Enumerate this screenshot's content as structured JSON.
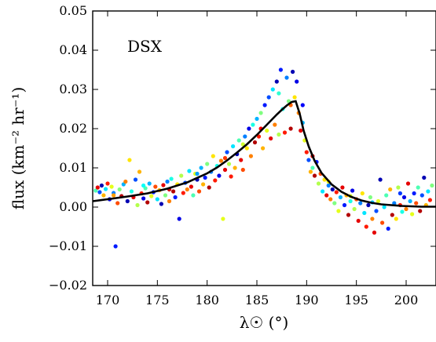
{
  "chart_data": {
    "type": "scatter",
    "annotation": "DSX",
    "xlabel": "λ☉ (°)",
    "ylabel": "flux (km⁻² hr⁻¹)",
    "xlim": [
      168.5,
      203
    ],
    "ylim": [
      -0.02,
      0.05
    ],
    "x_ticks": [
      170,
      175,
      180,
      185,
      190,
      195,
      200
    ],
    "x_tick_labels": [
      "170",
      "175",
      "180",
      "185",
      "190",
      "195",
      "200"
    ],
    "y_ticks": [
      -0.02,
      -0.01,
      0.0,
      0.01,
      0.02,
      0.03,
      0.04,
      0.05
    ],
    "y_tick_labels": [
      "−0.02",
      "−0.01",
      "0.00",
      "0.01",
      "0.02",
      "0.03",
      "0.04",
      "0.05"
    ],
    "grid": false,
    "series": [
      {
        "marker": "dot",
        "colormap": "jet",
        "points": [
          [
            168.8,
            0.0042,
            0.45
          ],
          [
            169.0,
            0.005,
            0.9
          ],
          [
            169.2,
            0.0038,
            0.2
          ],
          [
            169.4,
            0.0055,
            0.05
          ],
          [
            169.6,
            0.003,
            0.7
          ],
          [
            169.8,
            0.0046,
            0.35
          ],
          [
            170.0,
            0.006,
            0.85
          ],
          [
            170.2,
            0.002,
            0.1
          ],
          [
            170.4,
            0.0052,
            0.6
          ],
          [
            170.6,
            0.0036,
            0.25
          ],
          [
            170.8,
            -0.01,
            0.15
          ],
          [
            171.0,
            0.001,
            0.8
          ],
          [
            171.2,
            0.0045,
            0.5
          ],
          [
            171.4,
            0.0028,
            0.95
          ],
          [
            171.6,
            0.0058,
            0.3
          ],
          [
            171.8,
            0.0065,
            0.75
          ],
          [
            172.0,
            0.0015,
            0.05
          ],
          [
            172.2,
            0.012,
            0.65
          ],
          [
            172.4,
            0.004,
            0.4
          ],
          [
            172.6,
            0.0025,
            0.9
          ],
          [
            172.8,
            0.007,
            0.2
          ],
          [
            173.0,
            0.0005,
            0.55
          ],
          [
            173.2,
            0.009,
            0.7
          ],
          [
            173.4,
            0.0035,
            0.85
          ],
          [
            173.6,
            0.0022,
            0.1
          ],
          [
            173.8,
            0.0048,
            0.45
          ],
          [
            174.0,
            0.0012,
            0.95
          ],
          [
            174.2,
            0.006,
            0.3
          ],
          [
            174.4,
            0.0028,
            0.6
          ],
          [
            174.6,
            0.0038,
            0.15
          ],
          [
            174.8,
            0.0052,
            0.8
          ],
          [
            175.0,
            0.002,
            0.35
          ],
          [
            175.2,
            0.0043,
            0.7
          ],
          [
            175.4,
            0.0008,
            0.05
          ],
          [
            175.6,
            0.0056,
            0.9
          ],
          [
            175.8,
            0.003,
            0.5
          ],
          [
            176.0,
            0.0065,
            0.25
          ],
          [
            176.2,
            0.0015,
            0.75
          ],
          [
            176.4,
            0.0072,
            0.4
          ],
          [
            176.6,
            0.004,
            0.95
          ],
          [
            176.8,
            0.0025,
            0.15
          ],
          [
            177.0,
            0.0058,
            0.65
          ],
          [
            177.2,
            -0.003,
            0.1
          ],
          [
            177.4,
            0.008,
            0.55
          ],
          [
            177.6,
            0.0036,
            0.85
          ],
          [
            177.8,
            0.0062,
            0.2
          ],
          [
            178.0,
            0.0045,
            0.75
          ],
          [
            178.2,
            0.0092,
            0.35
          ],
          [
            178.4,
            0.0052,
            0.9
          ],
          [
            178.6,
            0.003,
            0.45
          ],
          [
            178.8,
            0.0085,
            0.6
          ],
          [
            179.0,
            0.007,
            0.05
          ],
          [
            179.2,
            0.004,
            0.8
          ],
          [
            179.4,
            0.01,
            0.3
          ],
          [
            179.6,
            0.0058,
            0.7
          ],
          [
            179.8,
            0.0075,
            0.15
          ],
          [
            180.0,
            0.011,
            0.5
          ],
          [
            180.2,
            0.005,
            0.95
          ],
          [
            180.4,
            0.009,
            0.25
          ],
          [
            180.6,
            0.013,
            0.65
          ],
          [
            180.8,
            0.0068,
            0.85
          ],
          [
            181.0,
            0.0105,
            0.4
          ],
          [
            181.2,
            0.008,
            0.1
          ],
          [
            181.4,
            0.0118,
            0.75
          ],
          [
            181.6,
            -0.003,
            0.6
          ],
          [
            181.8,
            0.0095,
            0.9
          ],
          [
            182.0,
            0.014,
            0.2
          ],
          [
            182.2,
            0.011,
            0.55
          ],
          [
            182.4,
            0.0078,
            0.85
          ],
          [
            182.6,
            0.0155,
            0.35
          ],
          [
            182.8,
            0.01,
            0.7
          ],
          [
            183.0,
            0.0135,
            0.05
          ],
          [
            183.2,
            0.017,
            0.45
          ],
          [
            183.4,
            0.012,
            0.9
          ],
          [
            183.6,
            0.0095,
            0.8
          ],
          [
            183.8,
            0.018,
            0.25
          ],
          [
            184.0,
            0.015,
            0.65
          ],
          [
            184.2,
            0.02,
            0.1
          ],
          [
            184.4,
            0.013,
            0.75
          ],
          [
            184.6,
            0.021,
            0.4
          ],
          [
            184.8,
            0.0165,
            0.95
          ],
          [
            185.0,
            0.0225,
            0.3
          ],
          [
            185.2,
            0.018,
            0.85
          ],
          [
            185.4,
            0.024,
            0.5
          ],
          [
            185.6,
            0.015,
            0.7
          ],
          [
            185.8,
            0.026,
            0.15
          ],
          [
            186.0,
            0.0195,
            0.6
          ],
          [
            186.2,
            0.028,
            0.2
          ],
          [
            186.4,
            0.0175,
            0.9
          ],
          [
            186.6,
            0.03,
            0.35
          ],
          [
            186.8,
            0.021,
            0.75
          ],
          [
            187.0,
            0.032,
            0.05
          ],
          [
            187.2,
            0.0185,
            0.55
          ],
          [
            187.4,
            0.035,
            0.15
          ],
          [
            187.6,
            0.025,
            0.4
          ],
          [
            187.8,
            0.019,
            0.85
          ],
          [
            188.0,
            0.033,
            0.25
          ],
          [
            188.2,
            0.027,
            0.5
          ],
          [
            188.4,
            0.02,
            0.95
          ],
          [
            188.6,
            0.0345,
            0.05
          ],
          [
            188.8,
            0.028,
            0.65
          ],
          [
            189.0,
            0.032,
            0.1
          ],
          [
            189.2,
            0.024,
            0.75
          ],
          [
            189.4,
            0.0195,
            0.9
          ],
          [
            189.6,
            0.0215,
            0.3
          ],
          [
            189.8,
            0.017,
            0.6
          ],
          [
            190.0,
            0.014,
            0.85
          ],
          [
            190.2,
            0.012,
            0.2
          ],
          [
            190.4,
            0.009,
            0.7
          ],
          [
            190.6,
            0.01,
            0.45
          ],
          [
            190.8,
            0.008,
            0.95
          ],
          [
            191.0,
            0.0115,
            0.15
          ],
          [
            191.2,
            0.006,
            0.55
          ],
          [
            191.4,
            0.0085,
            0.8
          ],
          [
            191.6,
            0.004,
            0.35
          ],
          [
            191.8,
            0.007,
            0.65
          ],
          [
            192.0,
            0.003,
            0.9
          ],
          [
            192.2,
            0.0055,
            0.25
          ],
          [
            192.4,
            0.002,
            0.75
          ],
          [
            192.6,
            0.0045,
            0.05
          ],
          [
            192.8,
            0.001,
            0.5
          ],
          [
            193.0,
            0.0038,
            0.85
          ],
          [
            193.2,
            -0.001,
            0.6
          ],
          [
            193.4,
            0.0025,
            0.3
          ],
          [
            193.6,
            0.005,
            0.9
          ],
          [
            193.8,
            0.0005,
            0.15
          ],
          [
            194.0,
            0.003,
            0.7
          ],
          [
            194.2,
            -0.002,
            0.95
          ],
          [
            194.4,
            0.0015,
            0.4
          ],
          [
            194.6,
            0.0042,
            0.1
          ],
          [
            194.8,
            -0.0005,
            0.55
          ],
          [
            195.0,
            0.002,
            0.8
          ],
          [
            195.2,
            -0.0035,
            0.9
          ],
          [
            195.4,
            0.001,
            0.25
          ],
          [
            195.6,
            0.0035,
            0.65
          ],
          [
            195.8,
            -0.0015,
            0.35
          ],
          [
            196.0,
            -0.005,
            0.85
          ],
          [
            196.2,
            0.0005,
            0.05
          ],
          [
            196.4,
            0.0025,
            0.5
          ],
          [
            196.6,
            -0.003,
            0.75
          ],
          [
            196.8,
            -0.0065,
            0.9
          ],
          [
            197.0,
            -0.001,
            0.2
          ],
          [
            197.2,
            0.0015,
            0.6
          ],
          [
            197.4,
            0.007,
            0.05
          ],
          [
            197.6,
            -0.004,
            0.8
          ],
          [
            197.8,
            0.0,
            0.35
          ],
          [
            198.0,
            0.003,
            0.45
          ],
          [
            198.2,
            -0.0055,
            0.15
          ],
          [
            198.4,
            0.0045,
            0.7
          ],
          [
            198.6,
            -0.002,
            0.95
          ],
          [
            198.8,
            0.001,
            0.25
          ],
          [
            199.0,
            -0.003,
            0.65
          ],
          [
            199.2,
            0.005,
            0.55
          ],
          [
            199.4,
            0.0005,
            0.85
          ],
          [
            199.6,
            -0.0012,
            0.4
          ],
          [
            199.8,
            0.0025,
            0.1
          ],
          [
            200.0,
            -0.0005,
            0.75
          ],
          [
            200.2,
            0.006,
            0.9
          ],
          [
            200.4,
            0.0015,
            0.3
          ],
          [
            200.6,
            -0.0018,
            0.6
          ],
          [
            200.8,
            0.0035,
            0.15
          ],
          [
            201.0,
            0.001,
            0.8
          ],
          [
            201.2,
            0.005,
            0.45
          ],
          [
            201.4,
            -0.001,
            0.95
          ],
          [
            201.6,
            0.003,
            0.2
          ],
          [
            201.8,
            0.0075,
            0.05
          ],
          [
            202.0,
            0.0005,
            0.7
          ],
          [
            202.2,
            0.004,
            0.35
          ],
          [
            202.4,
            0.0018,
            0.85
          ],
          [
            202.6,
            0.0055,
            0.5
          ],
          [
            170.6,
            0.003,
            0.72
          ],
          [
            173.6,
            0.0055,
            0.38
          ],
          [
            176.2,
            0.0045,
            0.92
          ],
          [
            179.0,
            0.0085,
            0.28
          ],
          [
            181.8,
            0.0125,
            0.82
          ],
          [
            183.6,
            0.016,
            0.58
          ],
          [
            185.4,
            0.02,
            0.88
          ],
          [
            187.2,
            0.029,
            0.42
          ],
          [
            188.4,
            0.026,
            0.78
          ],
          [
            189.6,
            0.026,
            0.12
          ],
          [
            190.6,
            0.013,
            0.92
          ],
          [
            192.2,
            0.0065,
            0.62
          ],
          [
            194.4,
            0.0028,
            0.58
          ],
          [
            196.6,
            0.0012,
            0.32
          ],
          [
            199.4,
            0.0035,
            0.18
          ]
        ]
      },
      {
        "name": "",
        "type": "line",
        "color": "#000000",
        "x": [
          168.5,
          170,
          172,
          174,
          176,
          178,
          180,
          181,
          182,
          183,
          184,
          185,
          186,
          187,
          187.5,
          188,
          188.5,
          188.9,
          189.3,
          189.7,
          190.2,
          190.8,
          191.5,
          192.5,
          193.5,
          194.5,
          195.5,
          196.5,
          197.5,
          198.5,
          199.5,
          200.5,
          201.5,
          202.5,
          203
        ],
        "values": [
          0.0015,
          0.002,
          0.0027,
          0.0035,
          0.0047,
          0.0063,
          0.0086,
          0.0101,
          0.0119,
          0.0139,
          0.016,
          0.0184,
          0.021,
          0.0236,
          0.0248,
          0.0259,
          0.0268,
          0.027,
          0.0238,
          0.0195,
          0.0155,
          0.0118,
          0.0087,
          0.0058,
          0.0039,
          0.0026,
          0.0017,
          0.0011,
          0.0007,
          0.0005,
          0.0003,
          0.0002,
          0.0001,
          0.0001,
          0.0001
        ]
      }
    ]
  }
}
